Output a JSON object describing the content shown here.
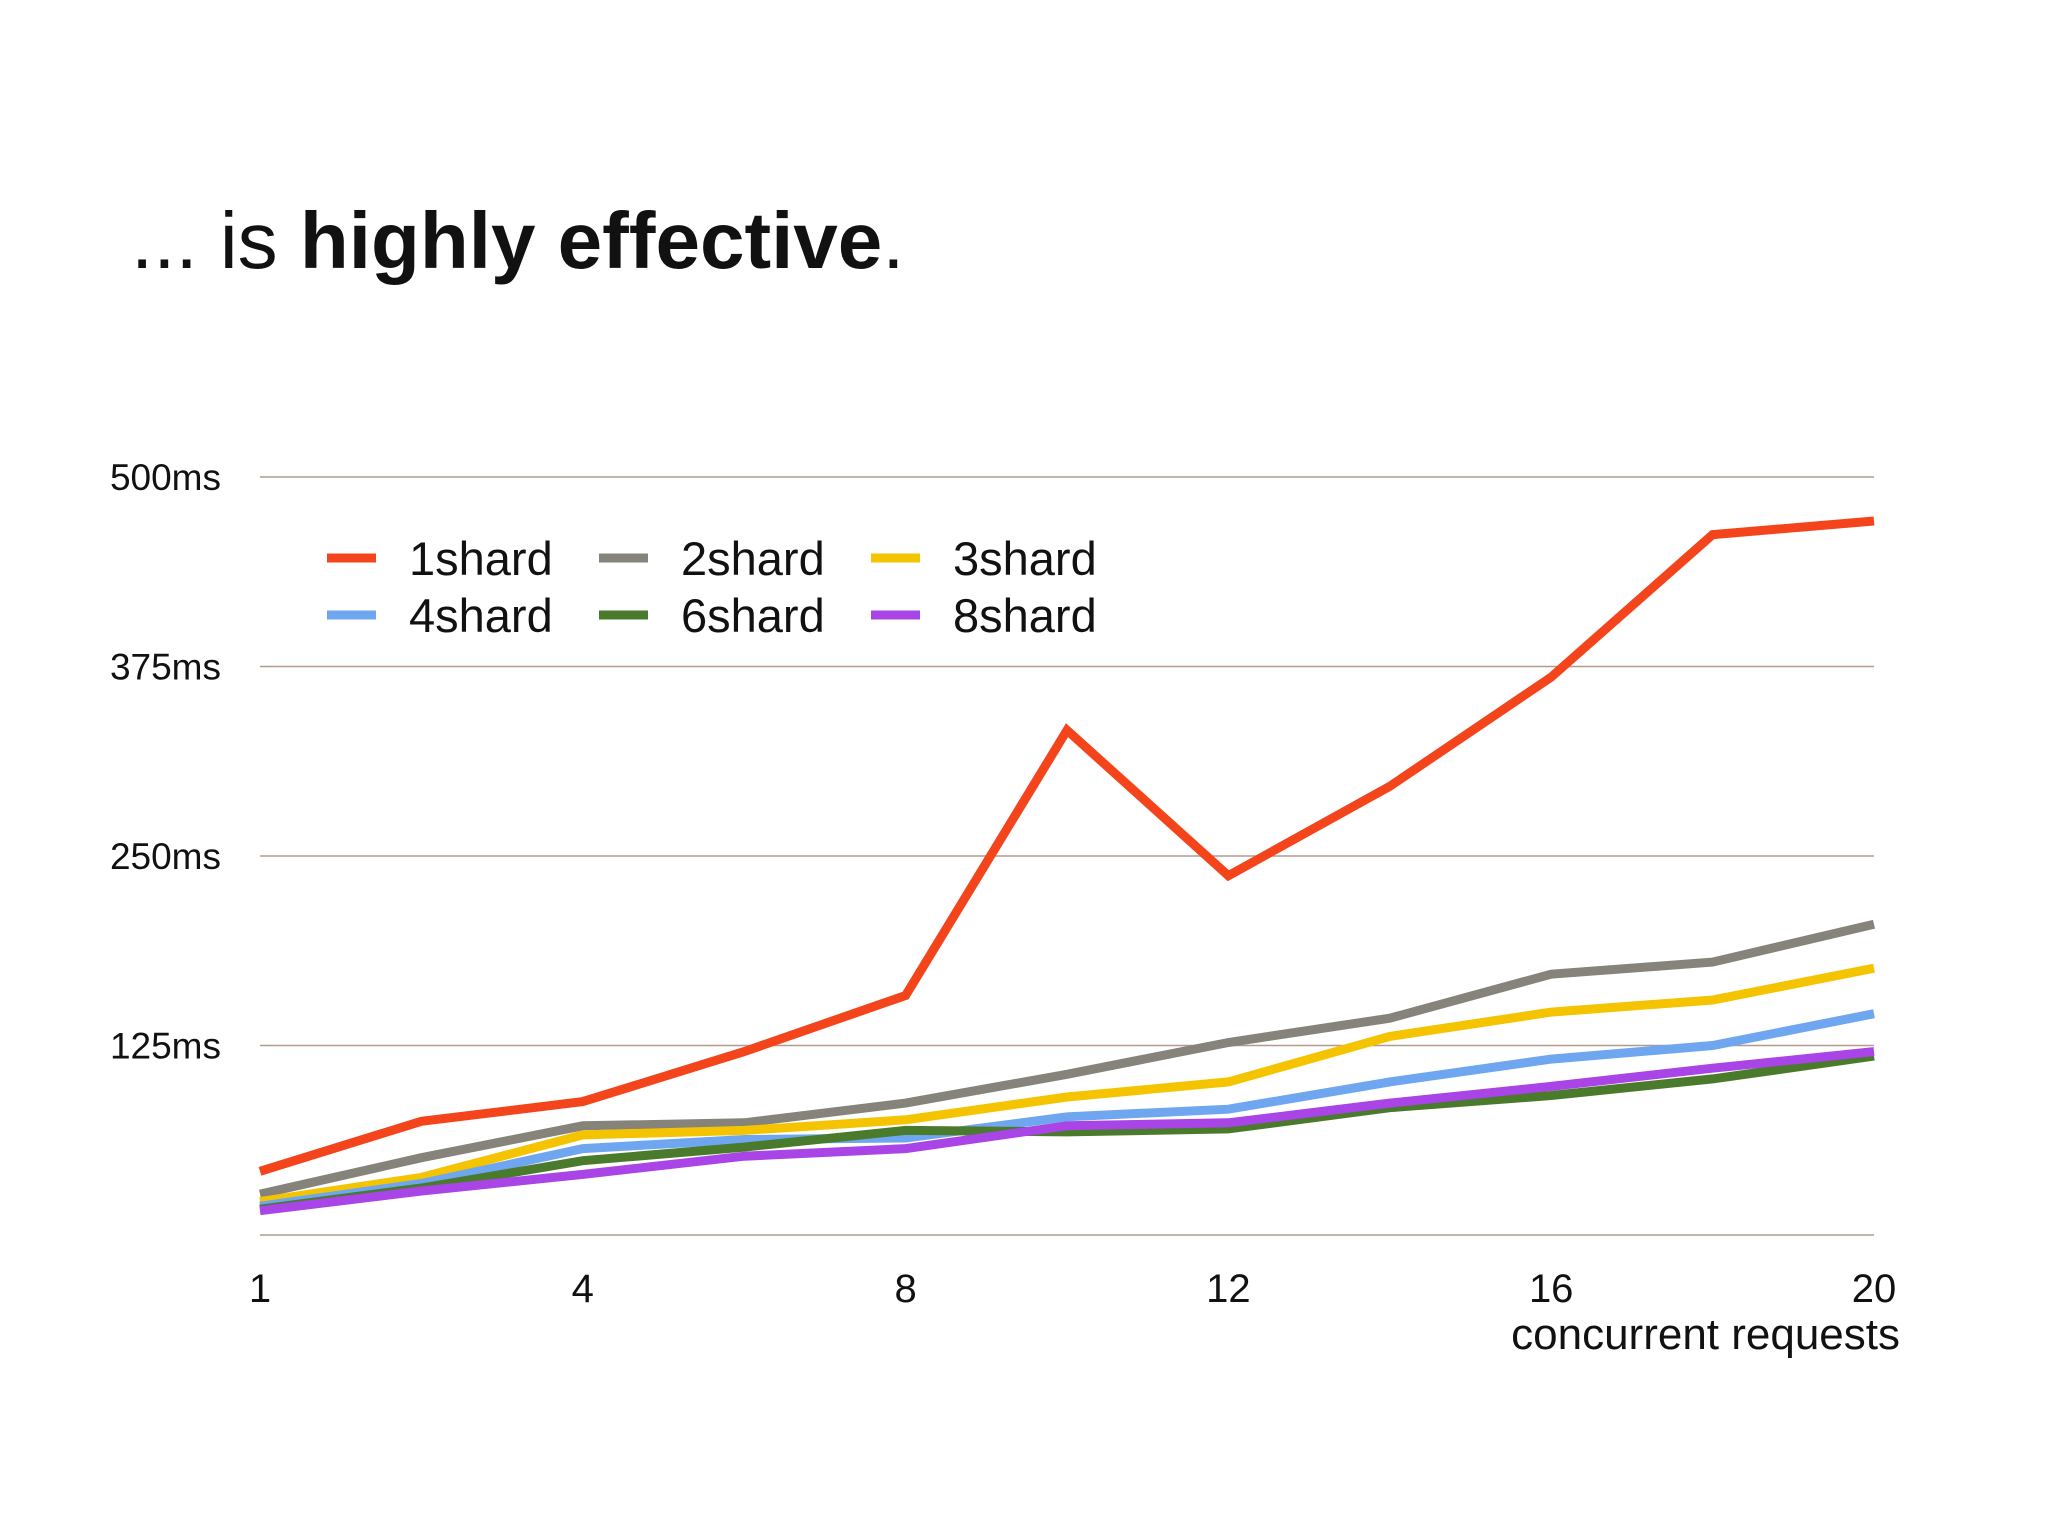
{
  "chart_data": {
    "type": "line",
    "title": [
      "... is ",
      "highly effective",
      "."
    ],
    "x_label": "concurrent requests",
    "categories": [
      "1",
      null,
      "4",
      null,
      "8",
      null,
      "12",
      null,
      "16",
      null,
      "20"
    ],
    "ylim": [
      0,
      500
    ],
    "yticks": [
      {
        "value": 125,
        "label": "125ms"
      },
      {
        "value": 250,
        "label": "250ms"
      },
      {
        "value": 375,
        "label": "375ms"
      },
      {
        "value": 500,
        "label": "500ms"
      }
    ],
    "grid": true,
    "legend": "top-left",
    "series": [
      {
        "name": "1shard",
        "color": "#f4441c",
        "values": [
          42,
          75,
          88,
          121,
          158,
          333,
          237,
          296,
          368,
          462,
          471
        ]
      },
      {
        "name": "2shard",
        "color": "#85837a",
        "values": [
          27,
          51,
          72,
          74,
          87,
          106,
          127,
          143,
          172,
          180,
          205
        ]
      },
      {
        "name": "3shard",
        "color": "#f5c400",
        "values": [
          22,
          38,
          66,
          69,
          76,
          91,
          101,
          131,
          147,
          155,
          176
        ]
      },
      {
        "name": "4shard",
        "color": "#6fa6f0",
        "values": [
          19,
          34,
          57,
          63,
          64,
          78,
          83,
          101,
          116,
          125,
          146
        ]
      },
      {
        "name": "6shard",
        "color": "#4a7a2c",
        "values": [
          17,
          31,
          49,
          58,
          69,
          68,
          70,
          84,
          92,
          103,
          118
        ]
      },
      {
        "name": "8shard",
        "color": "#a944e6",
        "values": [
          16,
          29,
          40,
          52,
          57,
          72,
          74,
          87,
          98,
          110,
          121
        ]
      }
    ]
  }
}
